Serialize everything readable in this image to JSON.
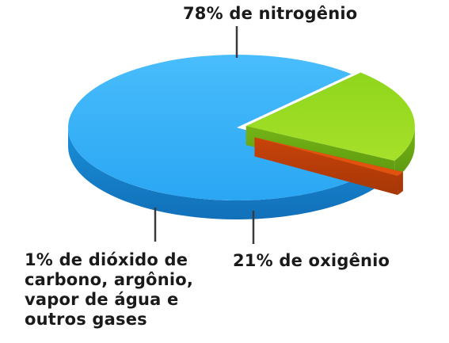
{
  "chart_data": {
    "type": "pie",
    "style": "3d-exploded",
    "title": "",
    "legend": "none",
    "slices": [
      {
        "value": 78,
        "label": "78% de nitrogênio",
        "color": "#1a9ee8"
      },
      {
        "value": 21,
        "label": "21% de oxigênio",
        "color": "#8fd61c"
      },
      {
        "value": 1,
        "label_lines": [
          "1% de dióxido de",
          "carbono, argônio,",
          "vapor de água e",
          "outros gases"
        ],
        "color": "#e0520e"
      }
    ]
  }
}
